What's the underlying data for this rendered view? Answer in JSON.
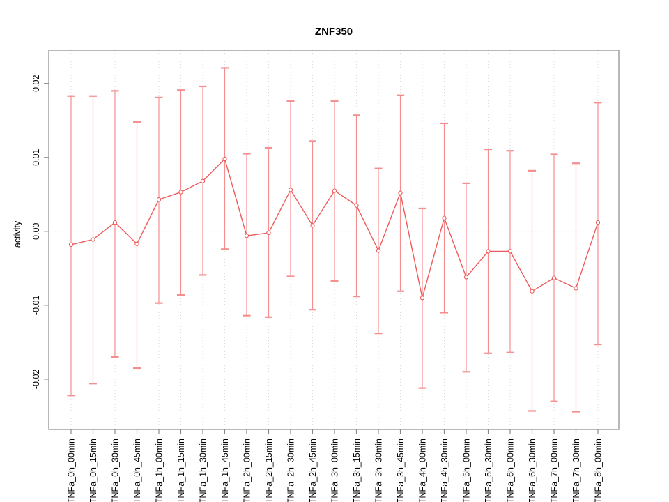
{
  "chart_data": {
    "type": "line",
    "title": "ZNF350",
    "xlabel": "",
    "ylabel": "activity",
    "legend": "none",
    "marker": "open-circle",
    "error_bars": true,
    "categories": [
      "TNFa_0h_00min",
      "TNFa_0h_15min",
      "TNFa_0h_30min",
      "TNFa_0h_45min",
      "TNFa_1h_00min",
      "TNFa_1h_15min",
      "TNFa_1h_30min",
      "TNFa_1h_45min",
      "TNFa_2h_00min",
      "TNFa_2h_15min",
      "TNFa_2h_30min",
      "TNFa_2h_45min",
      "TNFa_3h_00min",
      "TNFa_3h_15min",
      "TNFa_3h_30min",
      "TNFa_3h_45min",
      "TNFa_4h_00min",
      "TNFa_4h_30min",
      "TNFa_5h_00min",
      "TNFa_5h_30min",
      "TNFa_6h_00min",
      "TNFa_6h_30min",
      "TNFa_7h_00min",
      "TNFa_7h_30min",
      "TNFa_8h_00min"
    ],
    "series": [
      {
        "name": "activity",
        "values": [
          -0.0018,
          -0.0011,
          0.0012,
          -0.0017,
          0.0043,
          0.0053,
          0.0068,
          0.0098,
          -0.0006,
          -0.0002,
          0.0056,
          0.0008,
          0.0055,
          0.0035,
          -0.0026,
          0.0052,
          -0.009,
          0.0018,
          -0.0062,
          -0.0027,
          -0.0027,
          -0.0081,
          -0.0063,
          -0.0077,
          0.0012
        ],
        "upper": [
          0.0183,
          0.0183,
          0.019,
          0.0148,
          0.0181,
          0.0191,
          0.0196,
          0.0221,
          0.0105,
          0.0113,
          0.0176,
          0.0122,
          0.0176,
          0.0157,
          0.0085,
          0.0184,
          0.0031,
          0.0146,
          0.0065,
          0.0111,
          0.0109,
          0.0082,
          0.0104,
          0.0092,
          0.0174
        ],
        "lower": [
          -0.0222,
          -0.0206,
          -0.017,
          -0.0185,
          -0.0097,
          -0.0086,
          -0.0059,
          -0.0024,
          -0.0114,
          -0.0116,
          -0.0061,
          -0.0106,
          -0.0067,
          -0.0088,
          -0.0138,
          -0.0081,
          -0.0212,
          -0.011,
          -0.019,
          -0.0165,
          -0.0164,
          -0.0243,
          -0.023,
          -0.0244,
          -0.0153
        ]
      }
    ],
    "ylim": [
      -0.0268,
      0.0245
    ],
    "yticks": {
      "values": [
        -0.02,
        -0.01,
        0,
        0.01,
        0.02
      ],
      "labels": [
        "-0.02",
        "-0.01",
        "0.00",
        "0.01",
        "0.02"
      ]
    },
    "grid": {
      "vertical_dotted_per_category": true,
      "horizontal_zero_line_dotted": true,
      "other_horizontal_lines": false
    },
    "colors": {
      "series_line": "#ee5a5a",
      "marker_stroke": "#ee5a5a",
      "error_bar": "#f58e8e",
      "grid": "#d9d9d9",
      "axis": "#8a8a8a",
      "text": "#000000",
      "background": "#ffffff"
    }
  }
}
